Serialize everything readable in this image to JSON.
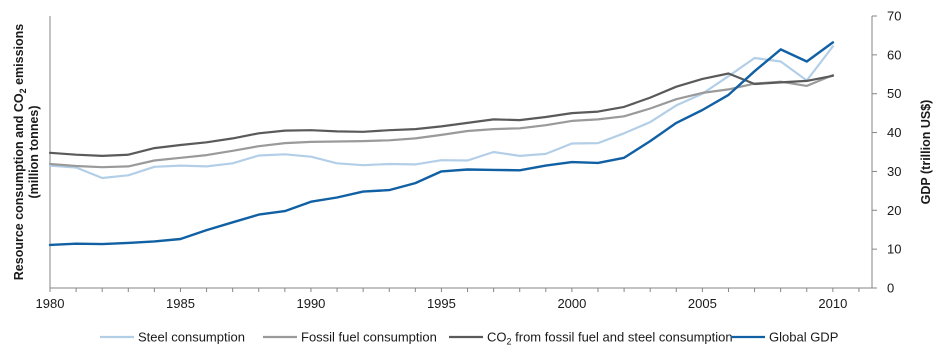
{
  "chart_data": {
    "type": "line",
    "title": "",
    "x": [
      1980,
      1981,
      1982,
      1983,
      1984,
      1985,
      1986,
      1987,
      1988,
      1989,
      1990,
      1991,
      1992,
      1993,
      1994,
      1995,
      1996,
      1997,
      1998,
      1999,
      2000,
      2001,
      2002,
      2003,
      2004,
      2005,
      2006,
      2007,
      2008,
      2009,
      2010
    ],
    "xticks": [
      1980,
      1985,
      1990,
      1995,
      2000,
      2005,
      2010
    ],
    "xlim": [
      1980,
      2011.5
    ],
    "ylabel_left": "Resource consumption and CO₂ emissions (million tonnes)",
    "ylabel_left_line1": "Resource consumption and CO",
    "ylabel_left_sub": "2",
    "ylabel_left_line1_end": " emissions",
    "ylabel_left_line2": "(million tonnes)",
    "ylabel_right": "GDP (trillion US$)",
    "ylim_right": [
      0,
      70
    ],
    "yticks_right": [
      0,
      10,
      20,
      30,
      40,
      50,
      60,
      70
    ],
    "left_axis_ticks_shown": false,
    "grid": false,
    "legend_position": "bottom",
    "series": [
      {
        "name": "Steel consumption",
        "color": "#b3cfe8",
        "values": [
          31.5,
          31,
          28.3,
          29,
          31.2,
          31.5,
          31.3,
          32.1,
          34.1,
          34.4,
          33.8,
          32.1,
          31.6,
          31.9,
          31.8,
          32.9,
          32.8,
          35,
          34,
          34.5,
          37.2,
          37.3,
          39.8,
          42.7,
          47,
          50,
          54.5,
          59.2,
          58.3,
          53.4,
          62.2
        ]
      },
      {
        "name": "Fossil fuel consumption",
        "color": "#9a9a9a",
        "values": [
          31.9,
          31.4,
          31.1,
          31.3,
          32.8,
          33.5,
          34.2,
          35.3,
          36.5,
          37.3,
          37.6,
          37.7,
          37.8,
          38,
          38.5,
          39.4,
          40.4,
          40.9,
          41.1,
          41.9,
          43,
          43.4,
          44.2,
          46.2,
          48.6,
          50.2,
          51.1,
          52.6,
          53.1,
          52,
          54.8
        ]
      },
      {
        "name": "CO₂ from fossil fuel and steel consumption",
        "name_prefix": "CO",
        "name_sub": "2",
        "name_suffix": "  from fossil fuel and steel consumption",
        "color": "#5a5a5a",
        "values": [
          34.8,
          34.3,
          34,
          34.3,
          36,
          36.8,
          37.5,
          38.5,
          39.8,
          40.5,
          40.6,
          40.3,
          40.2,
          40.6,
          40.9,
          41.6,
          42.5,
          43.4,
          43.2,
          44,
          45,
          45.4,
          46.6,
          49,
          51.8,
          53.8,
          55.2,
          52.5,
          52.9,
          53.3,
          54.6
        ]
      },
      {
        "name": "Global GDP",
        "color": "#1060a3",
        "values": [
          11.1,
          11.4,
          11.3,
          11.6,
          12,
          12.6,
          14.9,
          16.9,
          18.9,
          19.8,
          22.2,
          23.3,
          24.8,
          25.2,
          27,
          30,
          30.5,
          30.4,
          30.3,
          31.5,
          32.4,
          32.2,
          33.5,
          37.8,
          42.5,
          45.8,
          49.7,
          55.8,
          61.4,
          58.3,
          63.2
        ]
      }
    ]
  }
}
